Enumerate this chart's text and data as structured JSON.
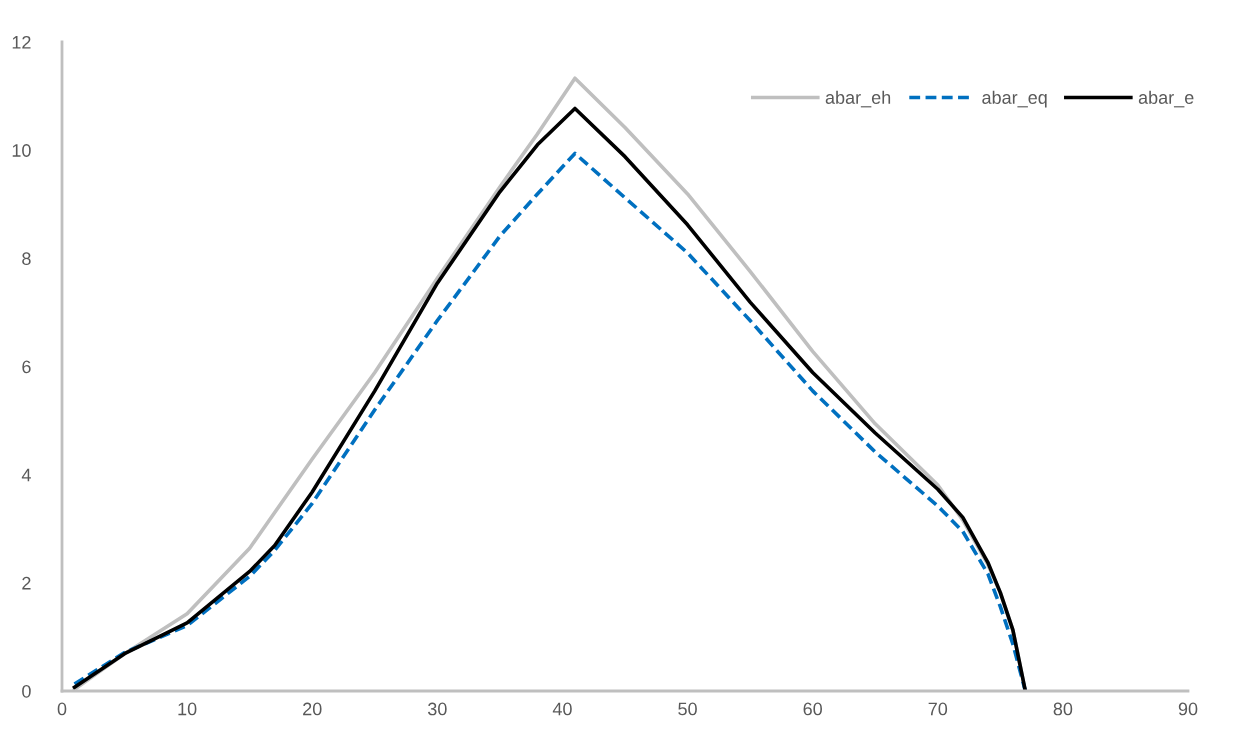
{
  "chart_data": {
    "type": "line",
    "x": [
      1,
      5,
      10,
      15,
      17,
      20,
      25,
      30,
      35,
      38,
      41,
      45,
      50,
      55,
      60,
      65,
      70,
      72,
      74,
      75,
      76,
      77
    ],
    "series": [
      {
        "name": "abar_eh",
        "color": "#bfbfbf",
        "line_style": "solid",
        "values": [
          0.03,
          0.69,
          1.43,
          2.64,
          3.3,
          4.29,
          5.89,
          7.63,
          9.32,
          10.3,
          11.33,
          10.42,
          9.19,
          7.76,
          6.28,
          4.94,
          3.81,
          3.16,
          2.34,
          1.82,
          1.13,
          0
        ]
      },
      {
        "name": "abar_eq",
        "color": "#0070c0",
        "line_style": "dashed",
        "values": [
          0.13,
          0.71,
          1.21,
          2.12,
          2.6,
          3.47,
          5.2,
          6.85,
          8.41,
          9.19,
          9.94,
          9.12,
          8.1,
          6.85,
          5.55,
          4.42,
          3.42,
          2.95,
          2.17,
          1.56,
          0.87,
          0
        ]
      },
      {
        "name": "abar_e",
        "color": "#000000",
        "line_style": "solid",
        "values": [
          0.07,
          0.69,
          1.26,
          2.21,
          2.69,
          3.68,
          5.55,
          7.54,
          9.23,
          10.1,
          10.77,
          9.88,
          8.62,
          7.19,
          5.89,
          4.77,
          3.73,
          3.21,
          2.38,
          1.82,
          1.13,
          0
        ]
      }
    ],
    "xlim": [
      0,
      90
    ],
    "xticks": [
      0,
      10,
      20,
      30,
      40,
      50,
      60,
      70,
      80,
      90
    ],
    "ylim": [
      0,
      12
    ],
    "yticks": [
      0,
      2,
      4,
      6,
      8,
      10,
      12
    ],
    "grid": false,
    "legend": "top right",
    "marker": "none"
  }
}
